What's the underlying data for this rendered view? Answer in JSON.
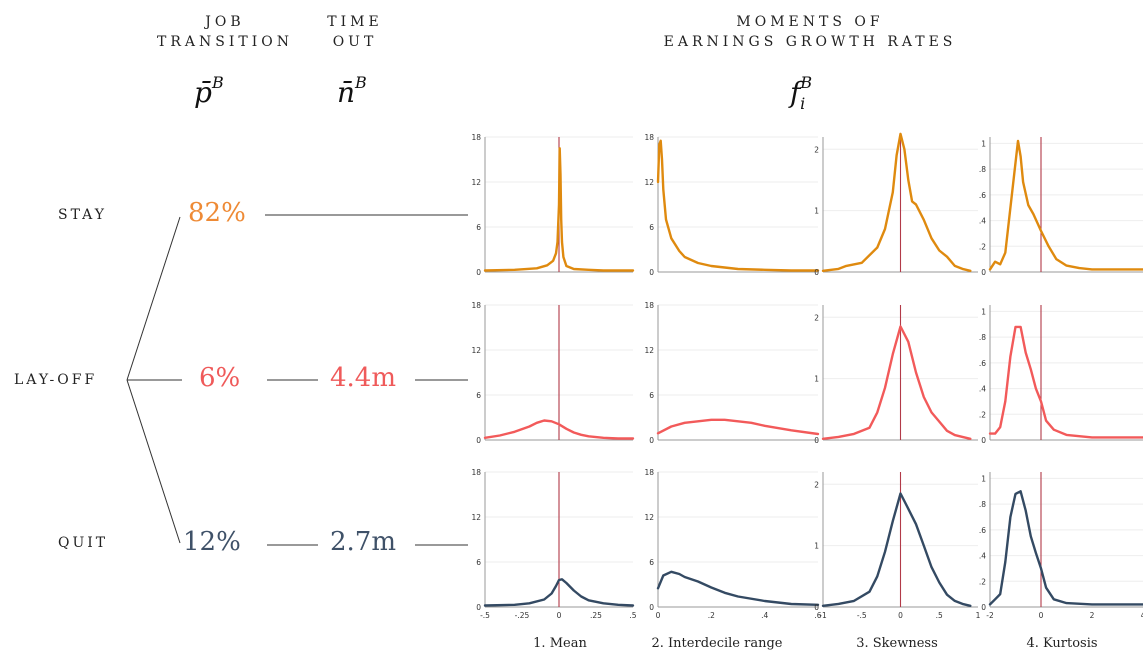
{
  "header": {
    "job_transition_line1": "JOB",
    "job_transition_line2": "TRANSITION",
    "job_symbol": "p̄",
    "job_sup": "B",
    "time_out_line1": "TIME",
    "time_out_line2": "OUT",
    "time_symbol": "n̄",
    "time_sup": "B",
    "moments_line1": "MOMENTS OF",
    "moments_line2": "EARNINGS GROWTH RATES",
    "moments_symbol": "f",
    "moments_sub": "i",
    "moments_sup": "B"
  },
  "rows": [
    {
      "label": "STAY",
      "share": "82%",
      "time_out": "",
      "color": "#ee8a35"
    },
    {
      "label": "LAY-OFF",
      "share": "6%",
      "time_out": "4.4m",
      "color": "#ef5a5a"
    },
    {
      "label": "QUIT",
      "share": "12%",
      "time_out": "2.7m",
      "color": "#3f5168"
    }
  ],
  "colors": {
    "stay_line": "#df8a0f",
    "layoff_line": "#f25a5a",
    "quit_line": "#344a63",
    "zero_line": "#b23a48",
    "axis": "#999999"
  },
  "chart_data": [
    {
      "type": "line",
      "xlabel": "1. Mean",
      "x_ticks": [
        "-.5",
        "-.25",
        "0",
        ".25",
        ".5"
      ],
      "xlim": [
        -0.5,
        0.5
      ],
      "y_ticks": [
        "0",
        "6",
        "12",
        "18"
      ],
      "ylim": [
        0,
        18
      ],
      "vline": 0,
      "series": [
        {
          "x": [
            -0.5,
            -0.3,
            -0.15,
            -0.08,
            -0.04,
            -0.02,
            -0.01,
            0,
            0.005,
            0.01,
            0.015,
            0.02,
            0.03,
            0.05,
            0.1,
            0.2,
            0.3,
            0.5
          ],
          "y": [
            0.2,
            0.3,
            0.5,
            0.9,
            1.5,
            2.5,
            4,
            9,
            16.5,
            13,
            7,
            4,
            2,
            0.8,
            0.4,
            0.3,
            0.2,
            0.2
          ]
        },
        {
          "x": [
            -0.5,
            -0.4,
            -0.3,
            -0.2,
            -0.15,
            -0.1,
            -0.05,
            0,
            0.05,
            0.1,
            0.15,
            0.2,
            0.3,
            0.4,
            0.5
          ],
          "y": [
            0.3,
            0.6,
            1.1,
            1.8,
            2.3,
            2.6,
            2.5,
            2.1,
            1.5,
            1.0,
            0.7,
            0.5,
            0.3,
            0.2,
            0.2
          ]
        },
        {
          "x": [
            -0.5,
            -0.3,
            -0.2,
            -0.1,
            -0.05,
            -0.02,
            0,
            0.02,
            0.05,
            0.1,
            0.15,
            0.2,
            0.3,
            0.4,
            0.5
          ],
          "y": [
            0.2,
            0.3,
            0.5,
            1.0,
            1.8,
            2.8,
            3.6,
            3.7,
            3.2,
            2.2,
            1.4,
            0.9,
            0.5,
            0.3,
            0.2
          ]
        }
      ]
    },
    {
      "type": "line",
      "xlabel": "2. Interdecile range",
      "x_ticks": [
        "0",
        ".2",
        ".4",
        ".6"
      ],
      "xlim": [
        0,
        0.6
      ],
      "y_ticks": [
        "0",
        "6",
        "12",
        "18"
      ],
      "ylim": [
        0,
        18
      ],
      "series": [
        {
          "x": [
            0,
            0.005,
            0.01,
            0.015,
            0.02,
            0.03,
            0.05,
            0.08,
            0.1,
            0.15,
            0.2,
            0.3,
            0.4,
            0.5,
            0.6
          ],
          "y": [
            12,
            17,
            17.5,
            15,
            11,
            7,
            4.5,
            2.8,
            2.0,
            1.2,
            0.8,
            0.4,
            0.3,
            0.2,
            0.2
          ]
        },
        {
          "x": [
            0,
            0.05,
            0.1,
            0.15,
            0.2,
            0.25,
            0.3,
            0.35,
            0.4,
            0.5,
            0.6
          ],
          "y": [
            0.9,
            1.8,
            2.3,
            2.5,
            2.7,
            2.7,
            2.5,
            2.3,
            1.9,
            1.3,
            0.8
          ]
        },
        {
          "x": [
            0,
            0.02,
            0.05,
            0.08,
            0.1,
            0.15,
            0.2,
            0.25,
            0.3,
            0.4,
            0.5,
            0.6
          ],
          "y": [
            2.5,
            4.2,
            4.7,
            4.4,
            4.0,
            3.4,
            2.6,
            1.9,
            1.4,
            0.8,
            0.4,
            0.3
          ]
        }
      ]
    },
    {
      "type": "line",
      "xlabel": "3. Skewness",
      "x_ticks": [
        "-1",
        "-.5",
        "0",
        ".5",
        "1"
      ],
      "xlim": [
        -1,
        1
      ],
      "y_ticks": [
        "0",
        "1",
        "2"
      ],
      "ylim": [
        0,
        2.2
      ],
      "vline": 0,
      "series": [
        {
          "x": [
            -1,
            -0.8,
            -0.7,
            -0.5,
            -0.3,
            -0.2,
            -0.1,
            -0.05,
            0,
            0.05,
            0.1,
            0.15,
            0.2,
            0.3,
            0.4,
            0.5,
            0.6,
            0.7,
            0.8,
            0.9
          ],
          "y": [
            0.02,
            0.05,
            0.1,
            0.15,
            0.4,
            0.7,
            1.3,
            1.9,
            2.25,
            2.0,
            1.5,
            1.15,
            1.1,
            0.85,
            0.55,
            0.35,
            0.25,
            0.1,
            0.05,
            0.02
          ]
        },
        {
          "x": [
            -1,
            -0.8,
            -0.6,
            -0.4,
            -0.3,
            -0.2,
            -0.1,
            0,
            0.1,
            0.2,
            0.3,
            0.4,
            0.5,
            0.6,
            0.7,
            0.8,
            0.9
          ],
          "y": [
            0.02,
            0.05,
            0.1,
            0.2,
            0.45,
            0.85,
            1.4,
            1.85,
            1.6,
            1.1,
            0.7,
            0.45,
            0.3,
            0.15,
            0.08,
            0.05,
            0.02
          ]
        },
        {
          "x": [
            -1,
            -0.8,
            -0.6,
            -0.4,
            -0.3,
            -0.2,
            -0.1,
            0,
            0.1,
            0.2,
            0.3,
            0.4,
            0.5,
            0.6,
            0.7,
            0.8,
            0.9
          ],
          "y": [
            0.02,
            0.05,
            0.1,
            0.25,
            0.5,
            0.9,
            1.4,
            1.85,
            1.6,
            1.35,
            1.0,
            0.65,
            0.4,
            0.2,
            0.1,
            0.05,
            0.02
          ]
        }
      ]
    },
    {
      "type": "line",
      "xlabel": "4. Kurtosis",
      "x_ticks": [
        "-2",
        "0",
        "2",
        "4"
      ],
      "xlim": [
        -2,
        4
      ],
      "y_ticks": [
        "0",
        ".2",
        ".4",
        ".6",
        ".8",
        "1"
      ],
      "ylim": [
        0,
        1.05
      ],
      "vline": 0,
      "series": [
        {
          "x": [
            -2,
            -1.8,
            -1.6,
            -1.4,
            -1.2,
            -1.0,
            -0.9,
            -0.8,
            -0.7,
            -0.5,
            -0.3,
            0,
            0.3,
            0.6,
            1.0,
            1.5,
            2,
            3,
            4
          ],
          "y": [
            0.02,
            0.08,
            0.06,
            0.15,
            0.5,
            0.85,
            1.02,
            0.9,
            0.7,
            0.52,
            0.45,
            0.32,
            0.2,
            0.1,
            0.05,
            0.03,
            0.02,
            0.02,
            0.02
          ]
        },
        {
          "x": [
            -2,
            -1.8,
            -1.6,
            -1.4,
            -1.2,
            -1.0,
            -0.8,
            -0.6,
            -0.4,
            -0.2,
            0,
            0.2,
            0.5,
            1,
            2,
            3,
            4
          ],
          "y": [
            0.05,
            0.05,
            0.1,
            0.3,
            0.65,
            0.88,
            0.88,
            0.68,
            0.55,
            0.4,
            0.3,
            0.15,
            0.08,
            0.04,
            0.02,
            0.02,
            0.02
          ]
        },
        {
          "x": [
            -2,
            -1.8,
            -1.6,
            -1.4,
            -1.2,
            -1.0,
            -0.8,
            -0.6,
            -0.4,
            -0.2,
            0,
            0.2,
            0.5,
            1,
            2,
            3,
            4
          ],
          "y": [
            0.02,
            0.06,
            0.1,
            0.35,
            0.7,
            0.88,
            0.9,
            0.75,
            0.55,
            0.42,
            0.3,
            0.15,
            0.06,
            0.03,
            0.02,
            0.02,
            0.02
          ]
        }
      ]
    }
  ]
}
